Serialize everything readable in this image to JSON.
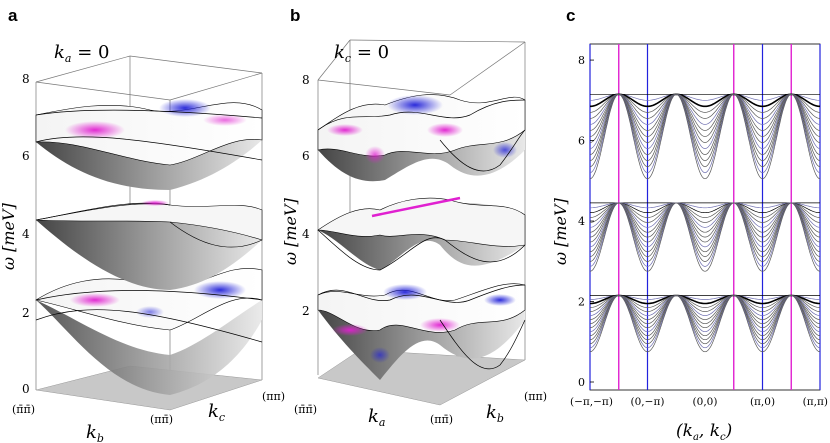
{
  "panels": {
    "a": {
      "letter": "a",
      "title": "k_a = 0",
      "title_k": "k",
      "title_sub": "a",
      "title_eq": " = 0",
      "z_ticks": [
        "0",
        "2",
        "4",
        "6",
        "8"
      ],
      "z_label": "ω [meV]",
      "x_tick_left": "(π̄π̄)",
      "x_tick_right": "(ππ̄)",
      "x_label_k": "k",
      "x_label_sub": "b",
      "y_tick": "(ππ)",
      "y_label_k": "k",
      "y_label_sub": "c"
    },
    "b": {
      "letter": "b",
      "title_k": "k",
      "title_sub": "c",
      "title_eq": " = 0",
      "z_ticks": [
        "2",
        "4",
        "6",
        "8"
      ],
      "z_label": "ω [meV]",
      "x_tick_left": "(π̄π̄)",
      "x_tick_right": "(ππ̄)",
      "x_label_k": "k",
      "x_label_sub": "a",
      "y_tick": "(ππ)",
      "y_label_k": "k",
      "y_label_sub": "b"
    },
    "c": {
      "letter": "c",
      "y_ticks": [
        "0",
        "2",
        "4",
        "6",
        "8"
      ],
      "y_label": "ω [meV]",
      "x_ticks": [
        "(−π,−π)",
        "(0,−π)",
        "(0,0)",
        "(π,0)",
        "(π,π)"
      ],
      "x_label": "(k_a, k_c)"
    }
  },
  "colors": {
    "magenta": "#e020d0",
    "blue": "#2222dd",
    "gray_surface": "#8a8a8a",
    "floor": "#c8c8c8"
  },
  "chart_data": {
    "type": "line",
    "title": "",
    "xlabel": "(k_a, k_c)",
    "ylabel": "ω [meV]",
    "ylim": [
      0,
      8.3
    ],
    "x_ticks": [
      "(−π,−π)",
      "(0,−π)",
      "(0,0)",
      "(π,0)",
      "(π,π)"
    ],
    "bands": [
      {
        "group": "lower",
        "top": 2.4,
        "bottom": 1.0
      },
      {
        "group": "middle",
        "top": 4.7,
        "bottom": 3.0
      },
      {
        "group": "upper",
        "top": 7.4,
        "bottom": 5.3
      }
    ],
    "magenta_lines_at": [
      0.5,
      2.5,
      3.5
    ],
    "blue_lines_at": [
      0,
      1,
      3,
      4
    ]
  }
}
